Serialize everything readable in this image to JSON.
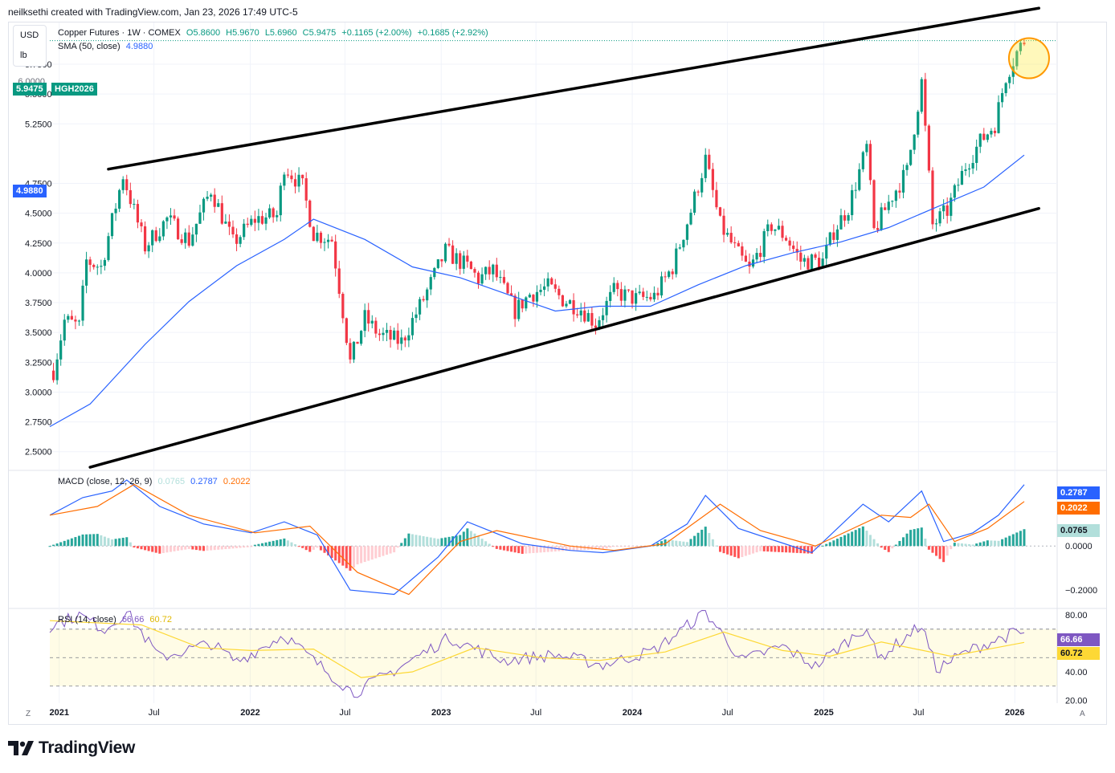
{
  "header": {
    "attribution": "neilksethi created with TradingView.com, Jan 23, 2026 17:49 UTC-5"
  },
  "units": {
    "currency": "USD",
    "unit": "lb"
  },
  "legend": {
    "symbol": "Copper Futures · 1W · COMEX",
    "open": "O5.8600",
    "high": "H5.9670",
    "low": "L5.6960",
    "close": "C5.9475",
    "change": "+0.1165 (+2.00%)",
    "change2": "+0.1685 (+2.92%)",
    "sma_label": "SMA (50, close)",
    "sma_value": "4.9880",
    "macd_label": "MACD (close, 12, 26, 9)",
    "macd_hist": "0.0765",
    "macd_line": "0.2787",
    "macd_signal": "0.2022",
    "rsi_label": "RSI (14, close)",
    "rsi_value": "66.66",
    "rsi_ma": "60.72"
  },
  "tags": {
    "price": "5.9475",
    "ticker": "HGH2026",
    "sma": "4.9880",
    "macd_line": "0.2787",
    "macd_signal": "0.2022",
    "macd_hist": "0.0765",
    "rsi": "66.66",
    "rsi_ma": "60.72",
    "price_partial": "6.0000"
  },
  "colors": {
    "up": "#089981",
    "down": "#f23645",
    "sma": "#2962ff",
    "macd": "#2962ff",
    "signal": "#ff6d00",
    "rsi": "#7e57c2",
    "rsi_ma": "#fdd835",
    "hist_up": "#26a69a",
    "hist_up_light": "#b2dfdb",
    "hist_down": "#ff5252",
    "hist_down_light": "#ffcdd2",
    "highlight": "#ff9800"
  },
  "corner": {
    "left": "Z",
    "right": "A"
  },
  "brand": {
    "name": "TradingView"
  },
  "chart_data": [
    {
      "type": "candlestick",
      "title": "Copper Futures · 1W · COMEX",
      "ylim": [
        2.35,
        6.1
      ],
      "yticks": [
        "5.7500",
        "5.5000",
        "5.2500",
        "4.7500",
        "4.5000",
        "4.2500",
        "4.0000",
        "3.7500",
        "3.5000",
        "3.2500",
        "3.0000",
        "2.7500",
        "2.5000"
      ],
      "x_axis": {
        "start": "2020-12-14",
        "end": "2026-03-23",
        "labels": [
          {
            "text": "2021",
            "date": "2021-01-01",
            "year": true
          },
          {
            "text": "Jul",
            "date": "2021-07-01",
            "year": false
          },
          {
            "text": "2022",
            "date": "2022-01-01",
            "year": true
          },
          {
            "text": "Jul",
            "date": "2022-07-01",
            "year": false
          },
          {
            "text": "2023",
            "date": "2023-01-01",
            "year": true
          },
          {
            "text": "Jul",
            "date": "2023-07-01",
            "year": false
          },
          {
            "text": "2024",
            "date": "2024-01-01",
            "year": true
          },
          {
            "text": "Jul",
            "date": "2024-07-01",
            "year": false
          },
          {
            "text": "2025",
            "date": "2025-01-01",
            "year": true
          },
          {
            "text": "Jul",
            "date": "2025-07-01",
            "year": false
          },
          {
            "text": "2026",
            "date": "2026-01-01",
            "year": true
          }
        ]
      },
      "closes": [
        {
          "date": "2020-12-21",
          "value": 3.18
        },
        {
          "date": "2021-01-11",
          "value": 3.6
        },
        {
          "date": "2021-02-08",
          "value": 3.55
        },
        {
          "date": "2021-02-22",
          "value": 4.1
        },
        {
          "date": "2021-03-22",
          "value": 4.05
        },
        {
          "date": "2021-05-03",
          "value": 4.82
        },
        {
          "date": "2021-06-14",
          "value": 4.22
        },
        {
          "date": "2021-07-26",
          "value": 4.45
        },
        {
          "date": "2021-09-06",
          "value": 4.27
        },
        {
          "date": "2021-10-18",
          "value": 4.7
        },
        {
          "date": "2021-11-29",
          "value": 4.25
        },
        {
          "date": "2022-01-10",
          "value": 4.45
        },
        {
          "date": "2022-02-21",
          "value": 4.48
        },
        {
          "date": "2022-03-07",
          "value": 4.9
        },
        {
          "date": "2022-04-11",
          "value": 4.72
        },
        {
          "date": "2022-05-02",
          "value": 4.33
        },
        {
          "date": "2022-06-06",
          "value": 4.28
        },
        {
          "date": "2022-06-27",
          "value": 3.68
        },
        {
          "date": "2022-07-11",
          "value": 3.25
        },
        {
          "date": "2022-08-08",
          "value": 3.62
        },
        {
          "date": "2022-09-05",
          "value": 3.48
        },
        {
          "date": "2022-10-17",
          "value": 3.42
        },
        {
          "date": "2022-11-28",
          "value": 3.78
        },
        {
          "date": "2023-01-09",
          "value": 4.18
        },
        {
          "date": "2023-02-20",
          "value": 4.05
        },
        {
          "date": "2023-03-13",
          "value": 3.95
        },
        {
          "date": "2023-04-10",
          "value": 4.02
        },
        {
          "date": "2023-05-22",
          "value": 3.68
        },
        {
          "date": "2023-06-19",
          "value": 3.82
        },
        {
          "date": "2023-07-24",
          "value": 3.88
        },
        {
          "date": "2023-08-21",
          "value": 3.78
        },
        {
          "date": "2023-09-25",
          "value": 3.7
        },
        {
          "date": "2023-10-23",
          "value": 3.58
        },
        {
          "date": "2023-11-27",
          "value": 3.84
        },
        {
          "date": "2024-01-08",
          "value": 3.78
        },
        {
          "date": "2024-02-12",
          "value": 3.8
        },
        {
          "date": "2024-03-18",
          "value": 4.05
        },
        {
          "date": "2024-04-22",
          "value": 4.52
        },
        {
          "date": "2024-05-20",
          "value": 4.95
        },
        {
          "date": "2024-06-17",
          "value": 4.4
        },
        {
          "date": "2024-07-22",
          "value": 4.15
        },
        {
          "date": "2024-08-12",
          "value": 4.02
        },
        {
          "date": "2024-09-23",
          "value": 4.4
        },
        {
          "date": "2024-10-21",
          "value": 4.3
        },
        {
          "date": "2024-11-18",
          "value": 4.1
        },
        {
          "date": "2024-12-30",
          "value": 4.1
        },
        {
          "date": "2025-01-20",
          "value": 4.35
        },
        {
          "date": "2025-02-17",
          "value": 4.55
        },
        {
          "date": "2025-03-24",
          "value": 5.05
        },
        {
          "date": "2025-04-07",
          "value": 4.35
        },
        {
          "date": "2025-05-12",
          "value": 4.65
        },
        {
          "date": "2025-06-09",
          "value": 4.85
        },
        {
          "date": "2025-07-07",
          "value": 5.6
        },
        {
          "date": "2025-07-28",
          "value": 4.4
        },
        {
          "date": "2025-08-25",
          "value": 4.52
        },
        {
          "date": "2025-09-29",
          "value": 4.9
        },
        {
          "date": "2025-10-27",
          "value": 5.1
        },
        {
          "date": "2025-11-24",
          "value": 5.25
        },
        {
          "date": "2025-12-15",
          "value": 5.65
        },
        {
          "date": "2026-01-05",
          "value": 5.85
        },
        {
          "date": "2026-01-19",
          "value": 5.9475
        }
      ],
      "sma": [
        {
          "date": "2020-12-14",
          "value": 2.71
        },
        {
          "date": "2021-03-01",
          "value": 2.9
        },
        {
          "date": "2021-06-14",
          "value": 3.4
        },
        {
          "date": "2021-09-06",
          "value": 3.76
        },
        {
          "date": "2021-12-06",
          "value": 4.06
        },
        {
          "date": "2022-03-07",
          "value": 4.28
        },
        {
          "date": "2022-05-02",
          "value": 4.45
        },
        {
          "date": "2022-08-08",
          "value": 4.28
        },
        {
          "date": "2022-11-07",
          "value": 4.05
        },
        {
          "date": "2023-02-06",
          "value": 3.96
        },
        {
          "date": "2023-05-01",
          "value": 3.83
        },
        {
          "date": "2023-08-07",
          "value": 3.68
        },
        {
          "date": "2023-10-30",
          "value": 3.72
        },
        {
          "date": "2024-02-05",
          "value": 3.72
        },
        {
          "date": "2024-05-06",
          "value": 3.9
        },
        {
          "date": "2024-08-05",
          "value": 4.06
        },
        {
          "date": "2024-11-04",
          "value": 4.17
        },
        {
          "date": "2025-02-03",
          "value": 4.26
        },
        {
          "date": "2025-05-05",
          "value": 4.38
        },
        {
          "date": "2025-08-04",
          "value": 4.55
        },
        {
          "date": "2025-11-03",
          "value": 4.72
        },
        {
          "date": "2026-01-19",
          "value": 4.988
        }
      ],
      "trendlines": [
        {
          "name": "upper-channel",
          "points": [
            {
              "date": "2021-04-05",
              "value": 4.87
            },
            {
              "date": "2026-02-16",
              "value": 6.22
            }
          ]
        },
        {
          "name": "lower-channel",
          "points": [
            {
              "date": "2021-03-01",
              "value": 2.37
            },
            {
              "date": "2026-02-16",
              "value": 4.54
            }
          ]
        }
      ],
      "highlight": {
        "date": "2026-01-19",
        "value": 5.8
      }
    },
    {
      "type": "line+histogram",
      "title": "MACD (close, 12, 26, 9)",
      "ylim": [
        -0.28,
        0.34
      ],
      "yticks": [
        "0.0000",
        "−0.2000"
      ],
      "macd": [
        {
          "date": "2020-12-14",
          "value": 0.14
        },
        {
          "date": "2021-02-15",
          "value": 0.22
        },
        {
          "date": "2021-04-12",
          "value": 0.25
        },
        {
          "date": "2021-05-10",
          "value": 0.3
        },
        {
          "date": "2021-07-12",
          "value": 0.18
        },
        {
          "date": "2021-10-04",
          "value": 0.1
        },
        {
          "date": "2022-01-03",
          "value": 0.06
        },
        {
          "date": "2022-03-07",
          "value": 0.11
        },
        {
          "date": "2022-05-09",
          "value": 0.05
        },
        {
          "date": "2022-07-11",
          "value": -0.2
        },
        {
          "date": "2022-10-03",
          "value": -0.22
        },
        {
          "date": "2022-12-26",
          "value": -0.05
        },
        {
          "date": "2023-02-20",
          "value": 0.11
        },
        {
          "date": "2023-06-05",
          "value": 0.01
        },
        {
          "date": "2023-09-04",
          "value": -0.02
        },
        {
          "date": "2023-11-06",
          "value": -0.03
        },
        {
          "date": "2024-02-05",
          "value": 0.0
        },
        {
          "date": "2024-04-15",
          "value": 0.1
        },
        {
          "date": "2024-05-20",
          "value": 0.23
        },
        {
          "date": "2024-07-22",
          "value": 0.08
        },
        {
          "date": "2024-09-23",
          "value": 0.03
        },
        {
          "date": "2024-12-09",
          "value": -0.03
        },
        {
          "date": "2025-03-17",
          "value": 0.19
        },
        {
          "date": "2025-05-05",
          "value": 0.11
        },
        {
          "date": "2025-07-07",
          "value": 0.25
        },
        {
          "date": "2025-08-18",
          "value": 0.02
        },
        {
          "date": "2025-10-13",
          "value": 0.06
        },
        {
          "date": "2025-12-01",
          "value": 0.14
        },
        {
          "date": "2026-01-19",
          "value": 0.2787
        }
      ],
      "signal": [
        {
          "date": "2020-12-14",
          "value": 0.14
        },
        {
          "date": "2021-03-15",
          "value": 0.18
        },
        {
          "date": "2021-05-24",
          "value": 0.28
        },
        {
          "date": "2021-09-06",
          "value": 0.14
        },
        {
          "date": "2022-01-10",
          "value": 0.06
        },
        {
          "date": "2022-04-25",
          "value": 0.09
        },
        {
          "date": "2022-07-25",
          "value": -0.12
        },
        {
          "date": "2022-10-31",
          "value": -0.22
        },
        {
          "date": "2023-02-06",
          "value": 0.02
        },
        {
          "date": "2023-04-17",
          "value": 0.07
        },
        {
          "date": "2023-09-04",
          "value": 0.0
        },
        {
          "date": "2023-11-27",
          "value": -0.02
        },
        {
          "date": "2024-03-04",
          "value": 0.01
        },
        {
          "date": "2024-06-17",
          "value": 0.19
        },
        {
          "date": "2024-09-02",
          "value": 0.07
        },
        {
          "date": "2024-12-16",
          "value": 0.0
        },
        {
          "date": "2025-04-21",
          "value": 0.14
        },
        {
          "date": "2025-06-16",
          "value": 0.13
        },
        {
          "date": "2025-07-21",
          "value": 0.19
        },
        {
          "date": "2025-09-08",
          "value": 0.02
        },
        {
          "date": "2025-11-10",
          "value": 0.08
        },
        {
          "date": "2026-01-19",
          "value": 0.2022
        }
      ]
    },
    {
      "type": "line",
      "title": "RSI (14, close)",
      "ylim": [
        18,
        84
      ],
      "yticks": [
        "80.00",
        "40.00",
        "20.00"
      ],
      "bands": [
        70,
        50,
        30
      ],
      "rsi": [
        {
          "date": "2020-12-14",
          "value": 72
        },
        {
          "date": "2021-02-08",
          "value": 80
        },
        {
          "date": "2021-03-29",
          "value": 70
        },
        {
          "date": "2021-05-10",
          "value": 82
        },
        {
          "date": "2021-07-12",
          "value": 50
        },
        {
          "date": "2021-10-18",
          "value": 60
        },
        {
          "date": "2021-12-06",
          "value": 47
        },
        {
          "date": "2022-03-07",
          "value": 66
        },
        {
          "date": "2022-05-02",
          "value": 48
        },
        {
          "date": "2022-07-18",
          "value": 25
        },
        {
          "date": "2022-10-17",
          "value": 44
        },
        {
          "date": "2023-01-16",
          "value": 64
        },
        {
          "date": "2023-05-01",
          "value": 48
        },
        {
          "date": "2023-08-07",
          "value": 52
        },
        {
          "date": "2023-11-06",
          "value": 45
        },
        {
          "date": "2024-02-12",
          "value": 55
        },
        {
          "date": "2024-05-20",
          "value": 82
        },
        {
          "date": "2024-07-29",
          "value": 48
        },
        {
          "date": "2024-10-14",
          "value": 58
        },
        {
          "date": "2024-12-16",
          "value": 44
        },
        {
          "date": "2025-03-24",
          "value": 72
        },
        {
          "date": "2025-04-14",
          "value": 49
        },
        {
          "date": "2025-07-07",
          "value": 73
        },
        {
          "date": "2025-08-04",
          "value": 42
        },
        {
          "date": "2025-10-06",
          "value": 55
        },
        {
          "date": "2025-12-29",
          "value": 67
        },
        {
          "date": "2026-01-19",
          "value": 66.66
        }
      ],
      "rsi_ma": [
        {
          "date": "2020-12-14",
          "value": 76
        },
        {
          "date": "2021-06-07",
          "value": 73
        },
        {
          "date": "2021-09-27",
          "value": 57
        },
        {
          "date": "2022-01-03",
          "value": 55
        },
        {
          "date": "2022-05-02",
          "value": 56
        },
        {
          "date": "2022-08-01",
          "value": 36
        },
        {
          "date": "2022-11-07",
          "value": 40
        },
        {
          "date": "2023-03-06",
          "value": 57
        },
        {
          "date": "2023-07-10",
          "value": 50
        },
        {
          "date": "2023-10-30",
          "value": 48
        },
        {
          "date": "2024-03-04",
          "value": 54
        },
        {
          "date": "2024-06-24",
          "value": 68
        },
        {
          "date": "2024-10-14",
          "value": 55
        },
        {
          "date": "2025-01-13",
          "value": 51
        },
        {
          "date": "2025-04-21",
          "value": 61
        },
        {
          "date": "2025-09-01",
          "value": 51
        },
        {
          "date": "2026-01-19",
          "value": 60.72
        }
      ]
    }
  ]
}
